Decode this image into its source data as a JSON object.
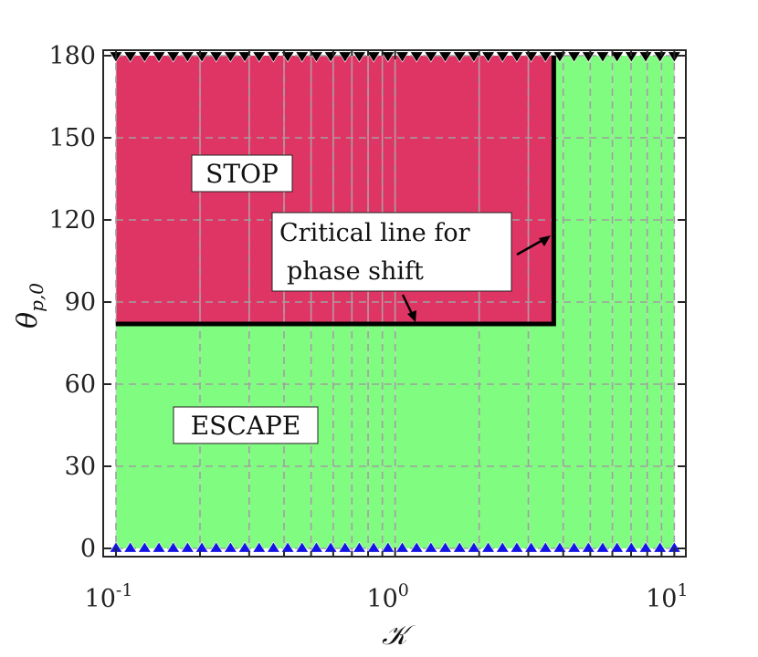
{
  "chart_data": {
    "type": "area",
    "x_scale": "log",
    "xlim": [
      0.09,
      11
    ],
    "ylim": [
      -3,
      182
    ],
    "xticks": [
      0.1,
      1,
      10
    ],
    "xtick_labels": [
      {
        "base": "10",
        "exp": "-1"
      },
      {
        "base": "10",
        "exp": "0"
      },
      {
        "base": "10",
        "exp": "1"
      }
    ],
    "yticks": [
      0,
      30,
      60,
      90,
      120,
      150,
      180
    ],
    "ytick_labels": [
      "0",
      "30",
      "60",
      "90",
      "120",
      "150",
      "180"
    ],
    "xlabel": "𝒦",
    "ylabel": "θ",
    "ylabel_sub": "p,0",
    "grid": true,
    "regions": [
      {
        "name": "ESCAPE",
        "color": "#80fc80",
        "x_range": [
          0.1,
          10
        ],
        "y_range": [
          0,
          180
        ]
      },
      {
        "name": "STOP",
        "color": "#df3565",
        "x_range": [
          0.1,
          3.7
        ],
        "y_range": [
          82,
          180
        ]
      }
    ],
    "critical_line": {
      "label_line1": "Critical line for",
      "label_line2": "phase shift",
      "x": [
        0.1,
        3.7,
        3.7
      ],
      "y": [
        82,
        82,
        180
      ],
      "color": "#000000"
    },
    "marker_rows": [
      {
        "y": 180,
        "marker": "triangle-down",
        "color": "#000000"
      },
      {
        "y": 0,
        "marker": "triangle-up",
        "color": "#1414e6"
      }
    ],
    "colors": {
      "escape": "#80fc80",
      "stop": "#df3565",
      "grid": "#a0a0a0",
      "vertical_lines": "#d2d2d2"
    }
  }
}
